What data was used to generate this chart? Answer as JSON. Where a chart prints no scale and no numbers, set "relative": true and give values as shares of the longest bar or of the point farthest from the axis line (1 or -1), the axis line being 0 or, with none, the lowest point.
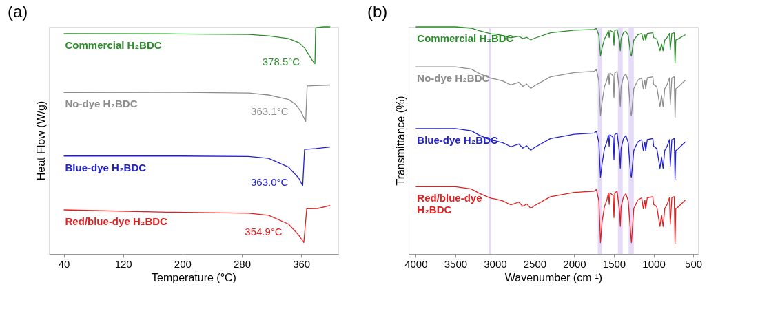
{
  "chart_data": [
    {
      "type": "line",
      "title": "(a)",
      "xlabel": "Temperature (°C)",
      "ylabel": "Heat Flow (W/g)",
      "relative": true,
      "xlim": [
        20,
        410
      ],
      "xticks": [
        40,
        120,
        200,
        280,
        360
      ],
      "series": [
        {
          "name": "Commercial H₂BDC",
          "color": "#2a8c2a",
          "x": [
            40,
            180,
            289,
            316,
            343,
            357,
            365,
            373,
            377.7,
            378.5,
            379.4,
            381,
            390,
            399
          ],
          "values": [
            0.97,
            0.969,
            0.966,
            0.96,
            0.948,
            0.93,
            0.905,
            0.862,
            0.84,
            0.838,
            0.995,
            0.997,
            1.0,
            1.0
          ]
        },
        {
          "name": "No-dye H₂BDC",
          "color": "#8c8c8c",
          "x": [
            40,
            200,
            289,
            316,
            343,
            352,
            360,
            366,
            368,
            380,
            399
          ],
          "values": [
            0.711,
            0.712,
            0.709,
            0.7,
            0.68,
            0.66,
            0.625,
            0.583,
            0.74,
            0.741,
            0.744
          ]
        },
        {
          "name": "Blue-dye H₂BDC",
          "color": "#2020cc",
          "x": [
            40,
            200,
            289,
            316,
            343,
            356.6,
            362,
            364.5,
            380,
            399
          ],
          "values": [
            0.431,
            0.431,
            0.429,
            0.421,
            0.382,
            0.334,
            0.3,
            0.46,
            0.464,
            0.471
          ]
        },
        {
          "name": "Red/blue-dye H₂BDC",
          "color": "#e02020",
          "x": [
            40,
            180,
            289,
            316,
            343,
            356.6,
            363.5,
            367.4,
            382,
            399
          ],
          "values": [
            0.194,
            0.184,
            0.179,
            0.17,
            0.131,
            0.083,
            0.05,
            0.199,
            0.2,
            0.213
          ]
        }
      ],
      "annotations": [
        {
          "text": "378.5°C",
          "x": 378.5,
          "y": 0.838
        },
        {
          "text": "363.1°C",
          "x": 363.1,
          "y": 0.62
        },
        {
          "text": "363.0°C",
          "x": 363.0,
          "y": 0.31
        },
        {
          "text": "354.9°C",
          "x": 354.9,
          "y": 0.09
        }
      ]
    },
    {
      "type": "line",
      "title": "(b)",
      "xlabel": "Wavenumber (cm⁻¹)",
      "ylabel": "Transmittance (%)",
      "relative": true,
      "xlim": [
        4090,
        440
      ],
      "xticks": [
        4000,
        3500,
        3000,
        2500,
        2000,
        1500,
        1000,
        500
      ],
      "bands": [
        {
          "axis": "x",
          "from": 3080,
          "to": 3050,
          "color": "#e2d6f7"
        },
        {
          "axis": "x",
          "from": 1704,
          "to": 1650,
          "color": "#e2d6f7"
        },
        {
          "axis": "x",
          "from": 1450,
          "to": 1390,
          "color": "#e2d6f7"
        },
        {
          "axis": "x",
          "from": 1315,
          "to": 1250,
          "color": "#e2d6f7"
        }
      ],
      "x": [
        4000,
        3500,
        3300,
        3200,
        3100,
        3050,
        3000,
        2900,
        2800,
        2700,
        2650,
        2600,
        2550,
        2500,
        2300,
        2000,
        1750,
        1720,
        1690,
        1670,
        1650,
        1620,
        1590,
        1570,
        1560,
        1550,
        1510,
        1500,
        1490,
        1460,
        1430,
        1420,
        1410,
        1380,
        1350,
        1320,
        1290,
        1280,
        1250,
        1200,
        1150,
        1130,
        1110,
        1100,
        1080,
        1010,
        1000,
        960,
        920,
        900,
        880,
        860,
        830,
        800,
        790,
        770,
        740,
        730,
        720,
        700,
        600
      ],
      "series": [
        {
          "name": "Commercial H₂BDC",
          "color": "#2a8c2a",
          "values": [
            1.0,
            1.0,
            0.994,
            0.983,
            0.974,
            0.969,
            0.968,
            0.962,
            0.952,
            0.959,
            0.948,
            0.954,
            0.943,
            0.95,
            0.974,
            0.985,
            0.988,
            0.993,
            0.962,
            0.872,
            0.907,
            0.947,
            0.965,
            0.983,
            0.953,
            0.984,
            0.977,
            0.918,
            0.984,
            0.988,
            0.936,
            0.895,
            0.947,
            0.974,
            0.981,
            0.962,
            0.878,
            0.872,
            0.942,
            0.965,
            0.971,
            0.942,
            0.965,
            0.942,
            0.971,
            0.974,
            0.953,
            0.947,
            0.895,
            0.924,
            0.895,
            0.942,
            0.953,
            0.971,
            0.901,
            0.971,
            0.974,
            0.84,
            0.942,
            0.945,
            0.965
          ]
        },
        {
          "name": "No-dye H₂BDC",
          "color": "#8c8c8c",
          "values": [
            0.824,
            0.824,
            0.814,
            0.795,
            0.78,
            0.773,
            0.77,
            0.761,
            0.744,
            0.756,
            0.738,
            0.748,
            0.729,
            0.741,
            0.78,
            0.799,
            0.804,
            0.812,
            0.761,
            0.61,
            0.669,
            0.736,
            0.765,
            0.795,
            0.746,
            0.797,
            0.785,
            0.688,
            0.797,
            0.804,
            0.717,
            0.649,
            0.736,
            0.78,
            0.793,
            0.761,
            0.62,
            0.61,
            0.727,
            0.765,
            0.775,
            0.727,
            0.765,
            0.727,
            0.775,
            0.78,
            0.746,
            0.736,
            0.649,
            0.698,
            0.649,
            0.727,
            0.746,
            0.775,
            0.659,
            0.775,
            0.78,
            0.601,
            0.727,
            0.732,
            0.765
          ]
        },
        {
          "name": "Blue-dye H₂BDC",
          "color": "#2020cc",
          "values": [
            0.552,
            0.552,
            0.542,
            0.523,
            0.508,
            0.501,
            0.498,
            0.489,
            0.472,
            0.484,
            0.466,
            0.476,
            0.457,
            0.469,
            0.508,
            0.527,
            0.532,
            0.54,
            0.489,
            0.338,
            0.397,
            0.464,
            0.493,
            0.523,
            0.474,
            0.525,
            0.513,
            0.416,
            0.525,
            0.532,
            0.445,
            0.377,
            0.464,
            0.508,
            0.521,
            0.489,
            0.348,
            0.338,
            0.455,
            0.493,
            0.503,
            0.455,
            0.493,
            0.455,
            0.503,
            0.508,
            0.474,
            0.464,
            0.377,
            0.426,
            0.377,
            0.455,
            0.474,
            0.503,
            0.387,
            0.503,
            0.508,
            0.329,
            0.455,
            0.46,
            0.493
          ]
        },
        {
          "name": "Red/blue-dye\nH₂BDC",
          "color": "#e02020",
          "values": [
            0.296,
            0.296,
            0.286,
            0.267,
            0.252,
            0.245,
            0.242,
            0.233,
            0.216,
            0.228,
            0.21,
            0.22,
            0.201,
            0.213,
            0.252,
            0.271,
            0.276,
            0.284,
            0.233,
            0.05,
            0.141,
            0.208,
            0.237,
            0.267,
            0.218,
            0.269,
            0.257,
            0.16,
            0.269,
            0.276,
            0.189,
            0.121,
            0.208,
            0.252,
            0.265,
            0.233,
            0.092,
            0.05,
            0.199,
            0.237,
            0.247,
            0.199,
            0.237,
            0.199,
            0.247,
            0.252,
            0.218,
            0.208,
            0.121,
            0.17,
            0.121,
            0.199,
            0.218,
            0.247,
            0.131,
            0.247,
            0.252,
            0.045,
            0.199,
            0.204,
            0.237
          ]
        }
      ]
    }
  ]
}
